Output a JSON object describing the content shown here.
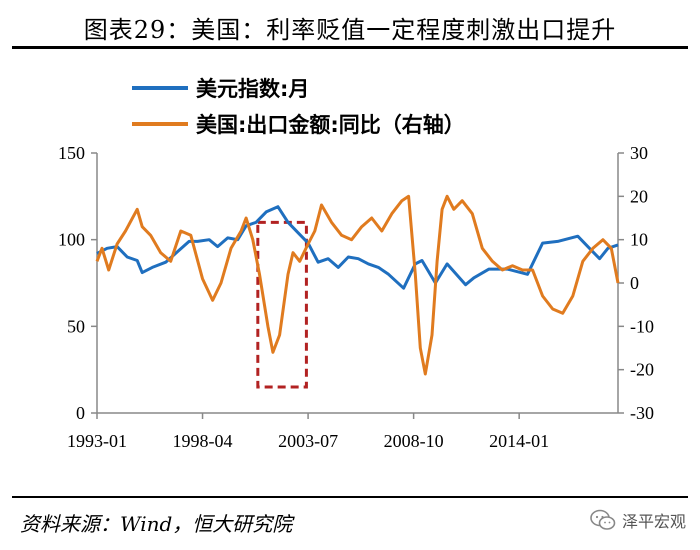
{
  "title": "图表29：美国：利率贬值一定程度刺激出口提升",
  "source": "资料来源：Wind，恒大研究院",
  "brand": {
    "label": "泽平宏观",
    "icon": "wechat-icon"
  },
  "colors": {
    "usd_index": "#1f6fbf",
    "exports": "#e07b1f",
    "highlight": "#b22222",
    "axis": "#888888"
  },
  "chart_data": {
    "type": "line",
    "x_ticks": [
      "1993-01",
      "1998-04",
      "2003-07",
      "2008-10",
      "2014-01"
    ],
    "x_range": [
      "1993-01",
      "2018-12"
    ],
    "y_left": {
      "ticks": [
        0,
        50,
        100,
        150
      ],
      "range": [
        0,
        150
      ]
    },
    "y_right": {
      "ticks": [
        -30,
        -20,
        -10,
        0,
        10,
        20,
        30
      ],
      "range": [
        -30,
        30
      ]
    },
    "legend_position": "top-left",
    "highlight_box": {
      "x_range": [
        "2001-01",
        "2003-06"
      ],
      "y_right_range": [
        -24,
        14
      ]
    },
    "series": [
      {
        "name": "美元指数:月",
        "axis": "left",
        "color": "#1f6fbf",
        "points": [
          [
            "1993-01",
            92
          ],
          [
            "1993-07",
            95
          ],
          [
            "1994-01",
            96
          ],
          [
            "1994-07",
            90
          ],
          [
            "1995-01",
            88
          ],
          [
            "1995-04",
            81
          ],
          [
            "1995-10",
            84
          ],
          [
            "1996-06",
            87
          ],
          [
            "1997-01",
            93
          ],
          [
            "1997-08",
            99
          ],
          [
            "1998-01",
            99
          ],
          [
            "1998-08",
            100
          ],
          [
            "1999-01",
            96
          ],
          [
            "1999-07",
            101
          ],
          [
            "2000-01",
            100
          ],
          [
            "2000-06",
            108
          ],
          [
            "2000-12",
            110
          ],
          [
            "2001-06",
            116
          ],
          [
            "2002-01",
            119
          ],
          [
            "2002-07",
            110
          ],
          [
            "2003-01",
            104
          ],
          [
            "2003-07",
            98
          ],
          [
            "2004-01",
            87
          ],
          [
            "2004-07",
            89
          ],
          [
            "2005-01",
            84
          ],
          [
            "2005-07",
            90
          ],
          [
            "2006-01",
            89
          ],
          [
            "2006-07",
            86
          ],
          [
            "2007-01",
            84
          ],
          [
            "2007-07",
            80
          ],
          [
            "2008-04",
            72
          ],
          [
            "2008-11",
            86
          ],
          [
            "2009-03",
            88
          ],
          [
            "2009-11",
            75
          ],
          [
            "2010-06",
            86
          ],
          [
            "2011-05",
            74
          ],
          [
            "2011-10",
            78
          ],
          [
            "2012-07",
            83
          ],
          [
            "2013-06",
            83
          ],
          [
            "2014-06",
            80
          ],
          [
            "2015-03",
            98
          ],
          [
            "2015-12",
            99
          ],
          [
            "2016-12",
            102
          ],
          [
            "2017-06",
            96
          ],
          [
            "2018-01",
            89
          ],
          [
            "2018-06",
            95
          ],
          [
            "2018-12",
            97
          ]
        ]
      },
      {
        "name": "美国:出口金额:同比（右轴）",
        "axis": "right",
        "color": "#e07b1f",
        "points": [
          [
            "1993-01",
            5
          ],
          [
            "1993-04",
            8
          ],
          [
            "1993-08",
            3
          ],
          [
            "1994-01",
            9
          ],
          [
            "1994-06",
            12
          ],
          [
            "1995-01",
            17
          ],
          [
            "1995-04",
            13
          ],
          [
            "1995-09",
            11
          ],
          [
            "1996-03",
            7
          ],
          [
            "1996-09",
            5
          ],
          [
            "1997-03",
            12
          ],
          [
            "1997-09",
            11
          ],
          [
            "1998-04",
            1
          ],
          [
            "1998-10",
            -4
          ],
          [
            "1999-03",
            0
          ],
          [
            "1999-09",
            8
          ],
          [
            "2000-03",
            12
          ],
          [
            "2000-06",
            15
          ],
          [
            "2000-10",
            10
          ],
          [
            "2001-02",
            2
          ],
          [
            "2001-07",
            -10
          ],
          [
            "2001-10",
            -16
          ],
          [
            "2002-02",
            -12
          ],
          [
            "2002-07",
            2
          ],
          [
            "2002-10",
            7
          ],
          [
            "2003-02",
            5
          ],
          [
            "2003-07",
            9
          ],
          [
            "2003-11",
            12
          ],
          [
            "2004-03",
            18
          ],
          [
            "2004-09",
            14
          ],
          [
            "2005-03",
            11
          ],
          [
            "2005-09",
            10
          ],
          [
            "2006-03",
            13
          ],
          [
            "2006-09",
            15
          ],
          [
            "2007-03",
            12
          ],
          [
            "2007-09",
            16
          ],
          [
            "2008-03",
            19
          ],
          [
            "2008-07",
            20
          ],
          [
            "2008-11",
            2
          ],
          [
            "2009-02",
            -15
          ],
          [
            "2009-05",
            -21
          ],
          [
            "2009-09",
            -12
          ],
          [
            "2009-12",
            5
          ],
          [
            "2010-03",
            17
          ],
          [
            "2010-06",
            20
          ],
          [
            "2010-10",
            17
          ],
          [
            "2011-03",
            19
          ],
          [
            "2011-09",
            16
          ],
          [
            "2012-03",
            8
          ],
          [
            "2012-09",
            5
          ],
          [
            "2013-03",
            3
          ],
          [
            "2013-09",
            4
          ],
          [
            "2014-03",
            3
          ],
          [
            "2014-09",
            3
          ],
          [
            "2015-03",
            -3
          ],
          [
            "2015-09",
            -6
          ],
          [
            "2016-03",
            -7
          ],
          [
            "2016-09",
            -3
          ],
          [
            "2017-03",
            5
          ],
          [
            "2017-09",
            8
          ],
          [
            "2018-03",
            10
          ],
          [
            "2018-08",
            8
          ],
          [
            "2018-12",
            0
          ]
        ]
      }
    ]
  }
}
